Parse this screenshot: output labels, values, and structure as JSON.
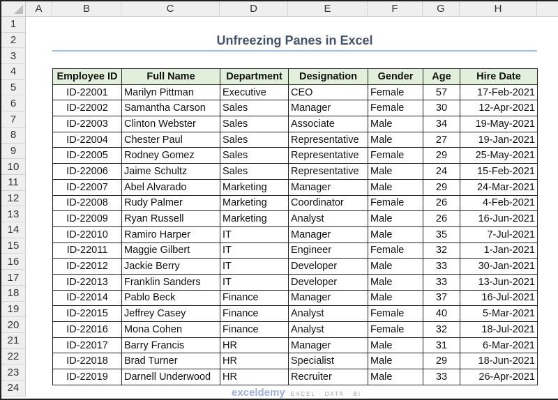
{
  "columns": [
    "A",
    "B",
    "C",
    "D",
    "E",
    "F",
    "G",
    "H"
  ],
  "rows": [
    "1",
    "2",
    "3",
    "4",
    "5",
    "6",
    "7",
    "8",
    "9",
    "10",
    "11",
    "12",
    "13",
    "14",
    "15",
    "16",
    "17",
    "18",
    "19",
    "20",
    "21",
    "22",
    "23",
    "24"
  ],
  "title": "Unfreezing Panes in Excel",
  "headers": [
    "Employee ID",
    "Full Name",
    "Department",
    "Designation",
    "Gender",
    "Age",
    "Hire Date"
  ],
  "data": [
    [
      "ID-22001",
      "Marilyn Pittman",
      "Executive",
      "CEO",
      "Female",
      "57",
      "17-Feb-2021"
    ],
    [
      "ID-22002",
      "Samantha Carson",
      "Sales",
      "Manager",
      "Female",
      "30",
      "12-Apr-2021"
    ],
    [
      "ID-22003",
      "Clinton Webster",
      "Sales",
      "Associate",
      "Male",
      "34",
      "19-May-2021"
    ],
    [
      "ID-22004",
      "Chester Paul",
      "Sales",
      "Representative",
      "Male",
      "27",
      "19-Jan-2021"
    ],
    [
      "ID-22005",
      "Rodney Gomez",
      "Sales",
      "Representative",
      "Female",
      "29",
      "25-May-2021"
    ],
    [
      "ID-22006",
      "Jaime Schultz",
      "Sales",
      "Representative",
      "Male",
      "24",
      "15-Feb-2021"
    ],
    [
      "ID-22007",
      "Abel Alvarado",
      "Marketing",
      "Manager",
      "Male",
      "29",
      "24-Mar-2021"
    ],
    [
      "ID-22008",
      "Rudy Palmer",
      "Marketing",
      "Coordinator",
      "Female",
      "26",
      "4-Feb-2021"
    ],
    [
      "ID-22009",
      "Ryan Russell",
      "Marketing",
      "Analyst",
      "Male",
      "26",
      "16-Jun-2021"
    ],
    [
      "ID-22010",
      "Ramiro Harper",
      "IT",
      "Manager",
      "Male",
      "35",
      "7-Jul-2021"
    ],
    [
      "ID-22011",
      "Maggie Gilbert",
      "IT",
      "Engineer",
      "Female",
      "32",
      "1-Jan-2021"
    ],
    [
      "ID-22012",
      "Jackie Berry",
      "IT",
      "Developer",
      "Male",
      "33",
      "30-Jan-2021"
    ],
    [
      "ID-22013",
      "Franklin Sanders",
      "IT",
      "Developer",
      "Male",
      "33",
      "13-Jun-2021"
    ],
    [
      "ID-22014",
      "Pablo Beck",
      "Finance",
      "Manager",
      "Male",
      "37",
      "16-Jul-2021"
    ],
    [
      "ID-22015",
      "Jeffrey Casey",
      "Finance",
      "Analyst",
      "Female",
      "40",
      "5-Mar-2021"
    ],
    [
      "ID-22016",
      "Mona Cohen",
      "Finance",
      "Analyst",
      "Female",
      "32",
      "18-Jul-2021"
    ],
    [
      "ID-22017",
      "Barry Francis",
      "HR",
      "Manager",
      "Male",
      "31",
      "6-Mar-2021"
    ],
    [
      "ID-22018",
      "Brad Turner",
      "HR",
      "Specialist",
      "Male",
      "29",
      "18-Jun-2021"
    ],
    [
      "ID-22019",
      "Darnell Underwood",
      "HR",
      "Recruiter",
      "Male",
      "33",
      "26-Apr-2021"
    ]
  ],
  "watermark": {
    "brand": "exceldemy",
    "tagline": "EXCEL · DATA · BI"
  },
  "colors": {
    "header_fill": "#e2efda",
    "title": "#44546a",
    "title_underline": "#9dc3e6"
  }
}
